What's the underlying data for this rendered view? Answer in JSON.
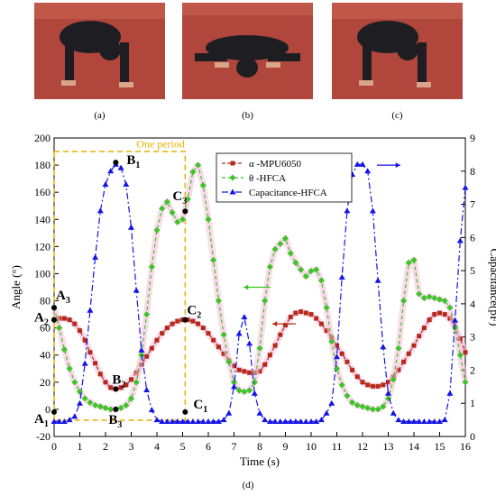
{
  "panels": [
    {
      "caption": "(a)"
    },
    {
      "caption": "(b)"
    },
    {
      "caption": "(c)"
    }
  ],
  "figure_caption": "(d)",
  "colors": {
    "track": "#b0463c",
    "track_dark": "#8c3430",
    "shirt": "#1e1e22",
    "skin": "#d8a48a",
    "alpha": "#b52a1a",
    "theta": "#3cc428",
    "cap": "#1414e6",
    "glow": "#f7bcd8",
    "period": "#e6b000"
  },
  "chart_data": {
    "type": "line",
    "title": "",
    "xlabel": "Time (s)",
    "ylabel_left": "Angle (°)",
    "ylabel_right": "Capacitance(pF)",
    "xlim": [
      0,
      16
    ],
    "ylim_left": [
      -20,
      200
    ],
    "ylim_right": [
      0,
      9
    ],
    "xticks": [
      0,
      1,
      2,
      3,
      4,
      5,
      6,
      7,
      8,
      9,
      10,
      11,
      12,
      13,
      14,
      15,
      16
    ],
    "yticks_left": [
      -20,
      0,
      20,
      40,
      60,
      80,
      100,
      120,
      140,
      160,
      180,
      200
    ],
    "yticks_right": [
      0,
      1,
      2,
      3,
      4,
      5,
      6,
      7,
      8,
      9
    ],
    "legend_position": "top-right",
    "series": [
      {
        "name": "α -MPU6050",
        "axis": "left",
        "marker": "square",
        "x": [
          0,
          0.2,
          0.4,
          0.6,
          0.8,
          1.0,
          1.2,
          1.4,
          1.6,
          1.8,
          2.0,
          2.2,
          2.4,
          2.6,
          2.8,
          3.0,
          3.2,
          3.4,
          3.6,
          3.8,
          4.0,
          4.2,
          4.4,
          4.6,
          4.8,
          5.0,
          5.2,
          5.4,
          5.6,
          5.8,
          6.0,
          6.2,
          6.4,
          6.6,
          6.8,
          7.0,
          7.2,
          7.4,
          7.6,
          7.8,
          8.0,
          8.2,
          8.4,
          8.6,
          8.8,
          9.0,
          9.2,
          9.4,
          9.6,
          9.8,
          10.0,
          10.2,
          10.4,
          10.6,
          10.8,
          11.0,
          11.2,
          11.4,
          11.6,
          11.8,
          12.0,
          12.2,
          12.4,
          12.6,
          12.8,
          13.0,
          13.2,
          13.4,
          13.6,
          13.8,
          14.0,
          14.2,
          14.4,
          14.6,
          14.8,
          15.0,
          15.2,
          15.4,
          15.6,
          15.8,
          16.0
        ],
        "y": [
          66,
          67,
          67,
          66,
          63,
          58,
          51,
          42,
          34,
          26,
          20,
          16,
          15,
          16,
          18,
          22,
          27,
          33,
          39,
          45,
          51,
          56,
          60,
          63,
          65,
          66,
          66,
          65,
          63,
          60,
          56,
          51,
          46,
          41,
          36,
          32,
          29,
          28,
          27,
          27,
          28,
          33,
          40,
          47,
          55,
          62,
          68,
          71,
          72,
          71,
          70,
          67,
          63,
          58,
          53,
          47,
          41,
          35,
          29,
          24,
          20,
          18,
          17,
          17,
          18,
          20,
          24,
          29,
          35,
          41,
          47,
          54,
          60,
          66,
          70,
          71,
          70,
          67,
          61,
          52,
          42
        ]
      },
      {
        "name": "θ -HFCA",
        "axis": "left",
        "marker": "diamond",
        "x": [
          0,
          0.2,
          0.4,
          0.6,
          0.8,
          1.0,
          1.2,
          1.4,
          1.6,
          1.8,
          2.0,
          2.2,
          2.4,
          2.6,
          2.8,
          3.0,
          3.2,
          3.4,
          3.6,
          3.8,
          4.0,
          4.2,
          4.4,
          4.6,
          4.8,
          5.0,
          5.2,
          5.4,
          5.6,
          5.8,
          6.0,
          6.2,
          6.4,
          6.6,
          6.8,
          7.0,
          7.2,
          7.4,
          7.6,
          7.8,
          8.0,
          8.2,
          8.4,
          8.6,
          8.8,
          9.0,
          9.2,
          9.4,
          9.6,
          9.8,
          10.0,
          10.2,
          10.4,
          10.6,
          10.8,
          11.0,
          11.2,
          11.4,
          11.6,
          11.8,
          12.0,
          12.2,
          12.4,
          12.6,
          12.8,
          13.0,
          13.2,
          13.4,
          13.6,
          13.8,
          14.0,
          14.2,
          14.4,
          14.6,
          14.8,
          15.0,
          15.2,
          15.4,
          15.6,
          15.8,
          16.0
        ],
        "y": [
          75,
          60,
          44,
          30,
          20,
          13,
          8,
          5,
          3,
          2,
          1,
          0,
          0,
          1,
          3,
          8,
          20,
          40,
          70,
          105,
          132,
          148,
          153,
          145,
          138,
          140,
          155,
          175,
          180,
          165,
          140,
          110,
          80,
          55,
          35,
          20,
          14,
          13,
          14,
          20,
          45,
          80,
          105,
          118,
          122,
          126,
          115,
          108,
          103,
          98,
          102,
          103,
          95,
          75,
          50,
          30,
          18,
          10,
          5,
          3,
          2,
          1,
          0,
          0,
          2,
          8,
          22,
          45,
          80,
          108,
          110,
          85,
          82,
          83,
          82,
          81,
          80,
          75,
          60,
          40,
          20
        ]
      },
      {
        "name": "Capacitance-HFCA",
        "axis": "right",
        "marker": "triangle",
        "x": [
          0,
          0.2,
          0.4,
          0.6,
          0.8,
          1.0,
          1.2,
          1.4,
          1.6,
          1.8,
          2.0,
          2.2,
          2.4,
          2.6,
          2.8,
          3.0,
          3.2,
          3.4,
          3.6,
          3.8,
          4.0,
          4.2,
          4.4,
          4.6,
          4.8,
          5.0,
          5.2,
          5.4,
          5.6,
          5.8,
          6.0,
          6.2,
          6.4,
          6.6,
          6.8,
          7.0,
          7.2,
          7.4,
          7.6,
          7.8,
          8.0,
          8.2,
          8.4,
          8.6,
          8.8,
          9.0,
          9.2,
          9.4,
          9.6,
          9.8,
          10.0,
          10.2,
          10.4,
          10.6,
          10.8,
          11.0,
          11.2,
          11.4,
          11.6,
          11.8,
          12.0,
          12.2,
          12.4,
          12.6,
          12.8,
          13.0,
          13.2,
          13.4,
          13.6,
          13.8,
          14.0,
          14.2,
          14.4,
          14.6,
          14.8,
          15.0,
          15.2,
          15.4,
          15.6,
          15.8,
          16.0
        ],
        "y": [
          0.45,
          0.45,
          0.45,
          0.5,
          0.6,
          1.0,
          2.2,
          3.8,
          5.4,
          6.8,
          7.6,
          8.0,
          8.2,
          8.1,
          7.6,
          6.3,
          4.4,
          2.6,
          1.4,
          0.8,
          0.5,
          0.45,
          0.45,
          0.45,
          0.45,
          0.45,
          0.45,
          0.45,
          0.45,
          0.45,
          0.45,
          0.45,
          0.45,
          0.5,
          0.7,
          1.5,
          3.1,
          3.6,
          2.8,
          1.3,
          0.7,
          0.5,
          0.45,
          0.45,
          0.45,
          0.45,
          0.45,
          0.45,
          0.45,
          0.45,
          0.45,
          0.45,
          0.5,
          0.7,
          1.0,
          2.4,
          4.8,
          6.8,
          7.9,
          8.2,
          8.2,
          8.0,
          6.8,
          4.7,
          2.7,
          1.3,
          0.7,
          0.5,
          0.45,
          0.45,
          0.45,
          0.45,
          0.45,
          0.45,
          0.45,
          0.45,
          0.5,
          1.3,
          3.5,
          5.9,
          7.5
        ]
      }
    ],
    "period_label": "One period",
    "points": [
      {
        "label": "A",
        "sub": "1",
        "x": 0.0,
        "y": -2
      },
      {
        "label": "A",
        "sub": "2",
        "x": 0.0,
        "y": 66
      },
      {
        "label": "A",
        "sub": "3",
        "x": 0.0,
        "y": 75
      },
      {
        "label": "B",
        "sub": "1",
        "x": 2.4,
        "y": 182
      },
      {
        "label": "B",
        "sub": "2",
        "x": 2.4,
        "y": 15
      },
      {
        "label": "B",
        "sub": "3",
        "x": 2.4,
        "y": 0
      },
      {
        "label": "C",
        "sub": "1",
        "x": 5.1,
        "y": -2
      },
      {
        "label": "C",
        "sub": "2",
        "x": 5.1,
        "y": 66
      },
      {
        "label": "C",
        "sub": "3",
        "x": 5.1,
        "y": 146
      }
    ]
  }
}
